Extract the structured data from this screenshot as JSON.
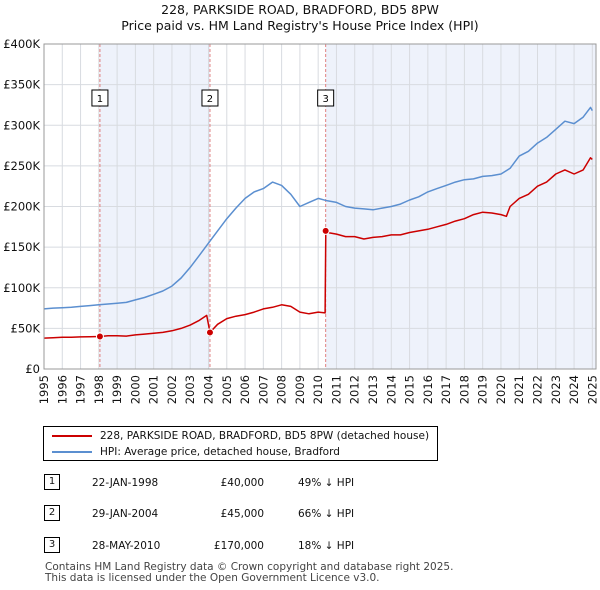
{
  "header": {
    "title": "228, PARKSIDE ROAD, BRADFORD, BD5 8PW",
    "subtitle": "Price paid vs. HM Land Registry's House Price Index (HPI)"
  },
  "colors": {
    "property": "#cc0000",
    "hpi": "#5b8fd0",
    "shade": "#eef2fb",
    "vline": "#e08080",
    "grid": "#d8dbe0"
  },
  "chart_data": {
    "type": "line",
    "title": "228, PARKSIDE ROAD, BRADFORD, BD5 8PW",
    "subtitle": "Price paid vs. HM Land Registry's House Price Index (HPI)",
    "xlim": [
      1995,
      2025.2
    ],
    "ylim": [
      0,
      400000
    ],
    "x_ticks": [
      "1995",
      "1996",
      "1997",
      "1998",
      "1999",
      "2000",
      "2001",
      "2002",
      "2003",
      "2004",
      "2005",
      "2006",
      "2007",
      "2008",
      "2009",
      "2010",
      "2011",
      "2012",
      "2013",
      "2014",
      "2015",
      "2016",
      "2017",
      "2018",
      "2019",
      "2020",
      "2021",
      "2022",
      "2023",
      "2024",
      "2025"
    ],
    "y_ticks": [
      {
        "value": 0,
        "label": "£0"
      },
      {
        "value": 50000,
        "label": "£50K"
      },
      {
        "value": 100000,
        "label": "£100K"
      },
      {
        "value": 150000,
        "label": "£150K"
      },
      {
        "value": 200000,
        "label": "£200K"
      },
      {
        "value": 250000,
        "label": "£250K"
      },
      {
        "value": 300000,
        "label": "£300K"
      },
      {
        "value": 350000,
        "label": "£350K"
      },
      {
        "value": 400000,
        "label": "£400K"
      }
    ],
    "series": [
      {
        "name": "228, PARKSIDE ROAD, BRADFORD, BD5 8PW (detached house)",
        "color": "#cc0000",
        "x": [
          1995.0,
          1995.5,
          1996.0,
          1996.5,
          1997.0,
          1997.5,
          1998.06,
          1998.5,
          1999.0,
          1999.5,
          2000.0,
          2000.5,
          2001.0,
          2001.5,
          2002.0,
          2002.5,
          2003.0,
          2003.5,
          2003.9,
          2004.08,
          2004.5,
          2005.0,
          2005.5,
          2006.0,
          2006.5,
          2007.0,
          2007.5,
          2008.0,
          2008.5,
          2009.0,
          2009.5,
          2010.0,
          2010.38,
          2010.42,
          2010.5,
          2011.0,
          2011.5,
          2012.0,
          2012.5,
          2013.0,
          2013.5,
          2014.0,
          2014.5,
          2015.0,
          2015.5,
          2016.0,
          2016.5,
          2017.0,
          2017.5,
          2018.0,
          2018.5,
          2019.0,
          2019.5,
          2020.0,
          2020.3,
          2020.5,
          2021.0,
          2021.5,
          2022.0,
          2022.5,
          2023.0,
          2023.5,
          2024.0,
          2024.5,
          2024.9,
          2025.0
        ],
        "y": [
          38000,
          38500,
          39000,
          39000,
          39500,
          39800,
          40000,
          41000,
          41000,
          40500,
          42000,
          43000,
          44000,
          45000,
          47000,
          50000,
          54000,
          60000,
          66000,
          45000,
          55000,
          62000,
          65000,
          67000,
          70000,
          74000,
          76000,
          79000,
          77000,
          70000,
          68000,
          70000,
          69000,
          170000,
          168000,
          166000,
          163000,
          163000,
          160000,
          162000,
          163000,
          165000,
          165000,
          168000,
          170000,
          172000,
          175000,
          178000,
          182000,
          185000,
          190000,
          193000,
          192000,
          190000,
          188000,
          200000,
          210000,
          215000,
          225000,
          230000,
          240000,
          245000,
          240000,
          245000,
          260000,
          258000
        ]
      },
      {
        "name": "HPI: Average price, detached house, Bradford",
        "color": "#5b8fd0",
        "x": [
          1995.0,
          1995.5,
          1996.0,
          1996.5,
          1997.0,
          1997.5,
          1998.0,
          1998.5,
          1999.0,
          1999.5,
          2000.0,
          2000.5,
          2001.0,
          2001.5,
          2002.0,
          2002.5,
          2003.0,
          2003.5,
          2004.0,
          2004.5,
          2005.0,
          2005.5,
          2006.0,
          2006.5,
          2007.0,
          2007.5,
          2008.0,
          2008.5,
          2009.0,
          2009.5,
          2010.0,
          2010.5,
          2011.0,
          2011.5,
          2012.0,
          2012.5,
          2013.0,
          2013.5,
          2014.0,
          2014.5,
          2015.0,
          2015.5,
          2016.0,
          2016.5,
          2017.0,
          2017.5,
          2018.0,
          2018.5,
          2019.0,
          2019.5,
          2020.0,
          2020.5,
          2021.0,
          2021.5,
          2022.0,
          2022.5,
          2023.0,
          2023.5,
          2024.0,
          2024.5,
          2024.9,
          2025.0
        ],
        "y": [
          74000,
          75000,
          75500,
          76000,
          77000,
          78000,
          79000,
          80000,
          81000,
          82000,
          85000,
          88000,
          92000,
          96000,
          102000,
          112000,
          125000,
          140000,
          155000,
          170000,
          185000,
          198000,
          210000,
          218000,
          222000,
          230000,
          226000,
          215000,
          200000,
          205000,
          210000,
          207000,
          205000,
          200000,
          198000,
          197000,
          196000,
          198000,
          200000,
          203000,
          208000,
          212000,
          218000,
          222000,
          226000,
          230000,
          233000,
          234000,
          237000,
          238000,
          240000,
          247000,
          262000,
          268000,
          278000,
          285000,
          295000,
          305000,
          302000,
          310000,
          322000,
          318000
        ]
      }
    ],
    "sales": [
      {
        "marker": "1",
        "x": 1998.06,
        "y": 40000
      },
      {
        "marker": "2",
        "x": 2004.08,
        "y": 45000
      },
      {
        "marker": "3",
        "x": 2010.41,
        "y": 170000
      }
    ]
  },
  "legend": {
    "property_label": "228, PARKSIDE ROAD, BRADFORD, BD5 8PW (detached house)",
    "hpi_label": "HPI: Average price, detached house, Bradford"
  },
  "transactions": [
    {
      "marker": "1",
      "date": "22-JAN-1998",
      "price": "£40,000",
      "hpi": "49% ↓ HPI"
    },
    {
      "marker": "2",
      "date": "29-JAN-2004",
      "price": "£45,000",
      "hpi": "66% ↓ HPI"
    },
    {
      "marker": "3",
      "date": "28-MAY-2010",
      "price": "£170,000",
      "hpi": "18% ↓ HPI"
    }
  ],
  "footer": {
    "line1": "Contains HM Land Registry data © Crown copyright and database right 2025.",
    "line2": "This data is licensed under the Open Government Licence v3.0."
  }
}
